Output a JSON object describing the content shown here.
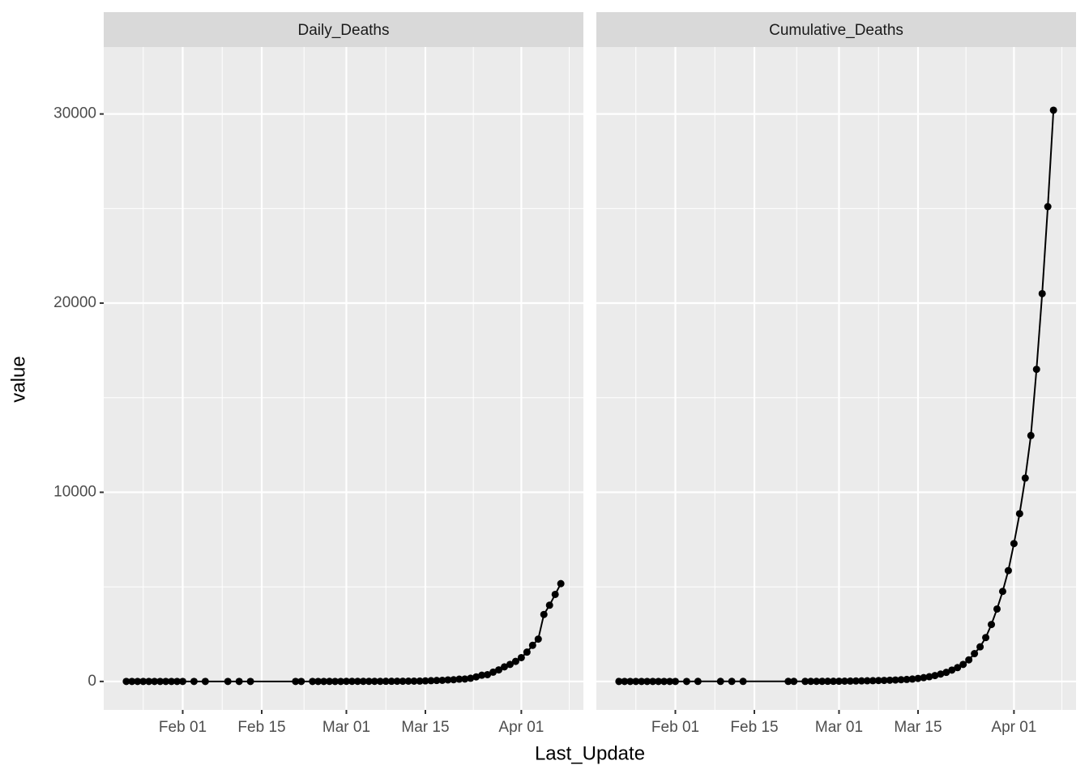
{
  "chart_data": {
    "type": "line",
    "x_label": "Last_Update",
    "y_label": "value",
    "facet": true,
    "grid": true,
    "x": [
      "Jan 22",
      "Jan 23",
      "Jan 24",
      "Jan 25",
      "Jan 26",
      "Jan 27",
      "Jan 28",
      "Jan 29",
      "Jan 30",
      "Jan 31",
      "Feb 01",
      "Feb 03",
      "Feb 05",
      "Feb 09",
      "Feb 11",
      "Feb 13",
      "Feb 21",
      "Feb 22",
      "Feb 24",
      "Feb 25",
      "Feb 26",
      "Feb 27",
      "Feb 28",
      "Feb 29",
      "Mar 01",
      "Mar 02",
      "Mar 03",
      "Mar 04",
      "Mar 05",
      "Mar 06",
      "Mar 07",
      "Mar 08",
      "Mar 09",
      "Mar 10",
      "Mar 11",
      "Mar 12",
      "Mar 13",
      "Mar 14",
      "Mar 15",
      "Mar 16",
      "Mar 17",
      "Mar 18",
      "Mar 19",
      "Mar 20",
      "Mar 21",
      "Mar 22",
      "Mar 23",
      "Mar 24",
      "Mar 25",
      "Mar 26",
      "Mar 27",
      "Mar 28",
      "Mar 29",
      "Mar 30",
      "Mar 31",
      "Apr 01",
      "Apr 02",
      "Apr 03",
      "Apr 04",
      "Apr 05",
      "Apr 06",
      "Apr 07",
      "Apr 08"
    ],
    "series": [
      {
        "name": "Daily_Deaths",
        "color": "#000000",
        "values": [
          0,
          0,
          0,
          0,
          0,
          0,
          0,
          0,
          0,
          0,
          1,
          0,
          1,
          0,
          0,
          0,
          1,
          0,
          0,
          1,
          0,
          2,
          1,
          1,
          5,
          5,
          5,
          5,
          5,
          5,
          5,
          7,
          8,
          10,
          10,
          15,
          15,
          20,
          30,
          40,
          50,
          60,
          80,
          90,
          120,
          130,
          170,
          240,
          330,
          360,
          490,
          610,
          770,
          900,
          1060,
          1260,
          1550,
          1910,
          2240,
          3540,
          4030,
          4600,
          5170
        ]
      },
      {
        "name": "Cumulative_Deaths",
        "color": "#000000",
        "values": [
          0,
          0,
          0,
          0,
          0,
          0,
          0,
          0,
          0,
          0,
          1,
          1,
          2,
          2,
          2,
          2,
          3,
          3,
          3,
          4,
          4,
          6,
          7,
          8,
          10,
          15,
          20,
          25,
          30,
          35,
          40,
          47,
          55,
          65,
          75,
          90,
          105,
          125,
          160,
          200,
          250,
          310,
          390,
          480,
          600,
          730,
          900,
          1140,
          1470,
          1830,
          2320,
          3010,
          3830,
          4760,
          5860,
          7290,
          8870,
          10750,
          13000,
          16500,
          20500,
          25100,
          30200
        ]
      }
    ],
    "xlim": [
      "Jan 18",
      "Apr 12"
    ],
    "xticks": [
      "Feb 01",
      "Feb 15",
      "Mar 01",
      "Mar 15",
      "Apr 01"
    ],
    "ylim": [
      -1506,
      33540
    ],
    "yticks": [
      0,
      10000,
      20000,
      30000
    ]
  }
}
